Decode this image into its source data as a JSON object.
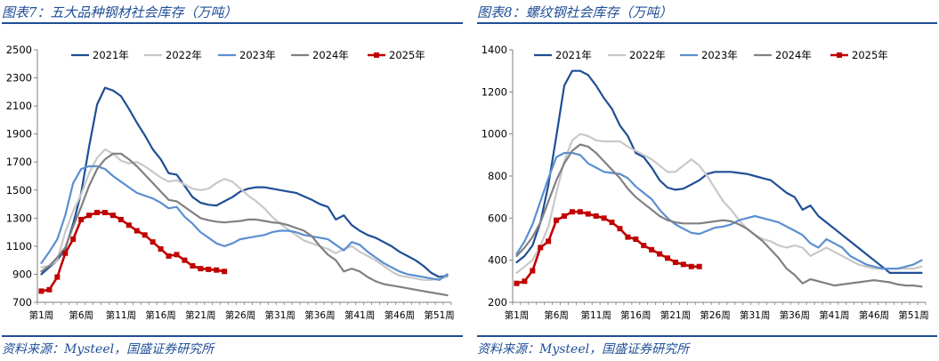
{
  "panels": [
    {
      "title": "图表7：五大品种钢材社会库存（万吨）",
      "source": "资料来源：Mysteel，国盛证券研究所"
    },
    {
      "title": "图表8：螺纹钢社会库存（万吨）",
      "source": "资料来源：Mysteel，国盛证券研究所"
    }
  ],
  "chart_data": [
    {
      "type": "line",
      "title": "图表7：五大品种钢材社会库存（万吨）",
      "xlabel": "",
      "ylabel": "",
      "x_count": 52,
      "xticks": [
        {
          "week": 1,
          "label": "第1周"
        },
        {
          "week": 6,
          "label": "第6周"
        },
        {
          "week": 11,
          "label": "第11周"
        },
        {
          "week": 16,
          "label": "第16周"
        },
        {
          "week": 21,
          "label": "第21周"
        },
        {
          "week": 26,
          "label": "第26周"
        },
        {
          "week": 31,
          "label": "第31周"
        },
        {
          "week": 36,
          "label": "第36周"
        },
        {
          "week": 41,
          "label": "第41周"
        },
        {
          "week": 46,
          "label": "第46周"
        },
        {
          "week": 51,
          "label": "第51周"
        }
      ],
      "ylim": [
        700,
        2500
      ],
      "yticks": [
        700,
        900,
        1100,
        1300,
        1500,
        1700,
        1900,
        2100,
        2300,
        2500
      ],
      "grid": false,
      "legend_position": "top",
      "series": [
        {
          "name": "2021年",
          "color": "#1f4e96",
          "width": 2.2,
          "markers": false,
          "values": [
            900,
            950,
            1000,
            1080,
            1260,
            1480,
            1810,
            2110,
            2230,
            2210,
            2170,
            2080,
            1980,
            1890,
            1790,
            1720,
            1620,
            1610,
            1530,
            1450,
            1410,
            1395,
            1390,
            1420,
            1450,
            1490,
            1510,
            1520,
            1520,
            1510,
            1500,
            1490,
            1480,
            1455,
            1430,
            1400,
            1380,
            1290,
            1320,
            1250,
            1210,
            1180,
            1160,
            1130,
            1100,
            1060,
            1030,
            1000,
            960,
            910,
            880,
            890
          ]
        },
        {
          "name": "2022年",
          "color": "#c8c8c8",
          "width": 2.2,
          "markers": false,
          "values": [
            950,
            960,
            1000,
            1200,
            1350,
            1470,
            1620,
            1730,
            1790,
            1760,
            1710,
            1690,
            1700,
            1670,
            1630,
            1590,
            1560,
            1570,
            1540,
            1510,
            1500,
            1510,
            1550,
            1580,
            1560,
            1510,
            1460,
            1420,
            1370,
            1310,
            1260,
            1220,
            1180,
            1140,
            1120,
            1100,
            1080,
            1050,
            1080,
            1100,
            1060,
            1030,
            1000,
            960,
            920,
            890,
            880,
            870,
            860,
            860,
            870,
            880
          ]
        },
        {
          "name": "2023年",
          "color": "#5b8fd0",
          "width": 2.2,
          "markers": false,
          "values": [
            980,
            1060,
            1150,
            1320,
            1550,
            1650,
            1670,
            1670,
            1650,
            1600,
            1560,
            1520,
            1480,
            1460,
            1440,
            1410,
            1370,
            1380,
            1310,
            1260,
            1200,
            1160,
            1120,
            1100,
            1120,
            1150,
            1160,
            1170,
            1180,
            1200,
            1210,
            1210,
            1200,
            1180,
            1170,
            1160,
            1150,
            1110,
            1070,
            1130,
            1110,
            1060,
            1020,
            980,
            950,
            920,
            900,
            890,
            880,
            870,
            860,
            900
          ]
        },
        {
          "name": "2024年",
          "color": "#808080",
          "width": 2.2,
          "markers": false,
          "values": [
            920,
            960,
            1020,
            1090,
            1240,
            1380,
            1530,
            1650,
            1720,
            1760,
            1760,
            1720,
            1670,
            1610,
            1550,
            1490,
            1430,
            1420,
            1380,
            1340,
            1300,
            1285,
            1275,
            1270,
            1275,
            1280,
            1290,
            1290,
            1280,
            1270,
            1265,
            1250,
            1230,
            1210,
            1170,
            1100,
            1040,
            1000,
            920,
            940,
            920,
            880,
            850,
            830,
            820,
            810,
            800,
            790,
            780,
            770,
            760,
            750
          ]
        },
        {
          "name": "2025年",
          "color": "#c00000",
          "width": 2.6,
          "markers": true,
          "values": [
            780,
            790,
            880,
            1050,
            1150,
            1290,
            1320,
            1340,
            1340,
            1320,
            1290,
            1250,
            1210,
            1180,
            1130,
            1080,
            1030,
            1040,
            1000,
            960,
            940,
            935,
            930,
            920
          ]
        }
      ]
    },
    {
      "type": "line",
      "title": "图表8：螺纹钢社会库存（万吨）",
      "xlabel": "",
      "ylabel": "",
      "x_count": 52,
      "xticks": [
        {
          "week": 1,
          "label": "第1周"
        },
        {
          "week": 6,
          "label": "第6周"
        },
        {
          "week": 11,
          "label": "第11周"
        },
        {
          "week": 16,
          "label": "第16周"
        },
        {
          "week": 21,
          "label": "第21周"
        },
        {
          "week": 26,
          "label": "第26周"
        },
        {
          "week": 31,
          "label": "第31周"
        },
        {
          "week": 36,
          "label": "第36周"
        },
        {
          "week": 41,
          "label": "第41周"
        },
        {
          "week": 46,
          "label": "第46周"
        },
        {
          "week": 51,
          "label": "第51周"
        }
      ],
      "ylim": [
        200,
        1400
      ],
      "yticks": [
        200,
        400,
        600,
        800,
        1000,
        1200,
        1400
      ],
      "grid": false,
      "legend_position": "top",
      "series": [
        {
          "name": "2021年",
          "color": "#1f4e96",
          "width": 2.2,
          "markers": false,
          "values": [
            390,
            420,
            470,
            580,
            760,
            990,
            1230,
            1300,
            1300,
            1280,
            1230,
            1170,
            1120,
            1040,
            990,
            910,
            890,
            840,
            780,
            745,
            735,
            740,
            760,
            780,
            810,
            820,
            820,
            820,
            815,
            810,
            800,
            790,
            780,
            750,
            720,
            700,
            640,
            660,
            610,
            580,
            550,
            520,
            490,
            460,
            430,
            400,
            370,
            340,
            340,
            340,
            340,
            340
          ]
        },
        {
          "name": "2022年",
          "color": "#c8c8c8",
          "width": 2.2,
          "markers": false,
          "values": [
            340,
            370,
            400,
            470,
            560,
            720,
            870,
            970,
            1000,
            990,
            970,
            965,
            965,
            965,
            940,
            920,
            900,
            880,
            850,
            820,
            820,
            850,
            880,
            850,
            800,
            740,
            680,
            640,
            590,
            550,
            520,
            500,
            490,
            470,
            460,
            470,
            460,
            420,
            440,
            460,
            440,
            420,
            400,
            380,
            370,
            360,
            360,
            360,
            360,
            360,
            360,
            370
          ]
        },
        {
          "name": "2023年",
          "color": "#5b8fd0",
          "width": 2.2,
          "markers": false,
          "values": [
            430,
            490,
            570,
            680,
            790,
            890,
            910,
            910,
            900,
            860,
            840,
            820,
            815,
            810,
            790,
            750,
            720,
            690,
            640,
            600,
            570,
            550,
            530,
            525,
            540,
            555,
            560,
            570,
            590,
            600,
            610,
            600,
            590,
            580,
            560,
            540,
            520,
            480,
            460,
            500,
            480,
            460,
            420,
            400,
            380,
            370,
            360,
            360,
            360,
            370,
            380,
            400
          ]
        },
        {
          "name": "2024年",
          "color": "#808080",
          "width": 2.2,
          "markers": false,
          "values": [
            420,
            460,
            510,
            580,
            680,
            780,
            860,
            920,
            950,
            940,
            910,
            870,
            830,
            790,
            740,
            700,
            670,
            640,
            610,
            590,
            580,
            575,
            575,
            575,
            580,
            585,
            590,
            585,
            570,
            550,
            520,
            490,
            450,
            410,
            360,
            330,
            290,
            310,
            300,
            290,
            280,
            285,
            290,
            295,
            300,
            305,
            300,
            295,
            285,
            280,
            280,
            275
          ]
        },
        {
          "name": "2025年",
          "color": "#c00000",
          "width": 2.6,
          "markers": true,
          "values": [
            290,
            300,
            350,
            460,
            490,
            590,
            610,
            630,
            630,
            620,
            610,
            600,
            580,
            550,
            510,
            500,
            470,
            450,
            430,
            410,
            390,
            380,
            370,
            370
          ]
        }
      ]
    }
  ]
}
